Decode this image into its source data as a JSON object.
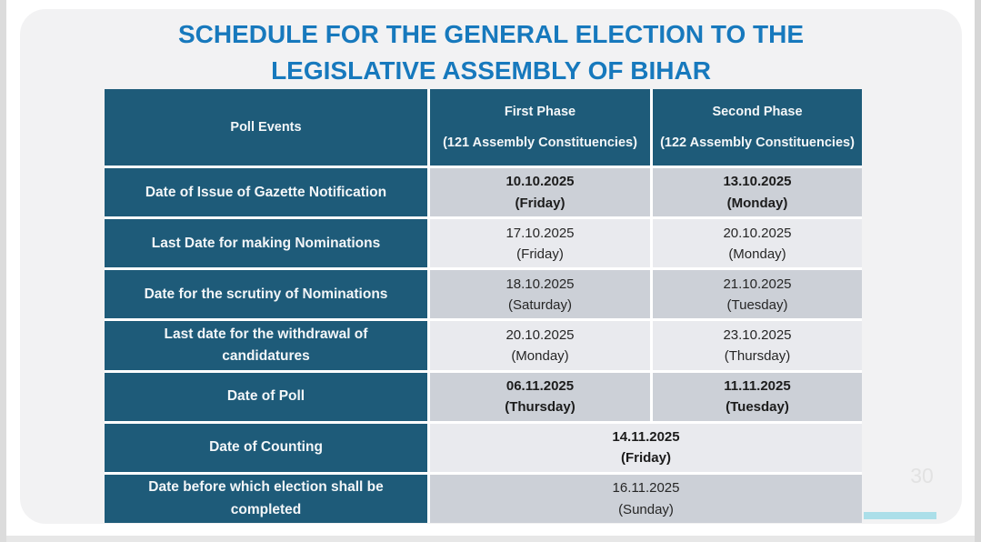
{
  "title": {
    "line1": "SCHEDULE FOR THE GENERAL ELECTION TO THE",
    "line2": "LEGISLATIVE ASSEMBLY OF BIHAR"
  },
  "colors": {
    "title_blue": "#1779bd",
    "header_teal": "#1e5b79",
    "row_shade_dark": "#ccd0d7",
    "row_shade_light": "#e9eaee",
    "accent_cyan": "#abdfe9"
  },
  "table": {
    "headers": [
      {
        "line1": "Poll Events",
        "line2": ""
      },
      {
        "line1": "First Phase",
        "line2": "(121 Assembly Constituencies)"
      },
      {
        "line1": "Second Phase",
        "line2": "(122 Assembly Constituencies)"
      }
    ],
    "rows": [
      {
        "event_line1": "Date of Issue of Gazette Notification",
        "event_line2": "",
        "first_date": "10.10.2025",
        "first_day": "(Friday)",
        "second_date": "13.10.2025",
        "second_day": "(Monday)",
        "bold": true,
        "merged": false
      },
      {
        "event_line1": "Last Date for making Nominations",
        "event_line2": "",
        "first_date": "17.10.2025",
        "first_day": "(Friday)",
        "second_date": "20.10.2025",
        "second_day": "(Monday)",
        "bold": false,
        "merged": false
      },
      {
        "event_line1": "Date for the scrutiny of Nominations",
        "event_line2": "",
        "first_date": "18.10.2025",
        "first_day": "(Saturday)",
        "second_date": "21.10.2025",
        "second_day": "(Tuesday)",
        "bold": false,
        "merged": false
      },
      {
        "event_line1": "Last date for the withdrawal of",
        "event_line2": "candidatures",
        "first_date": "20.10.2025",
        "first_day": "(Monday)",
        "second_date": "23.10.2025",
        "second_day": "(Thursday)",
        "bold": false,
        "merged": false
      },
      {
        "event_line1": "Date of Poll",
        "event_line2": "",
        "first_date": "06.11.2025",
        "first_day": "(Thursday)",
        "second_date": "11.11.2025",
        "second_day": "(Tuesday)",
        "bold": true,
        "merged": false
      },
      {
        "event_line1": "Date of Counting",
        "event_line2": "",
        "merged_date": "14.11.2025",
        "merged_day": "(Friday)",
        "bold": true,
        "merged": true
      },
      {
        "event_line1": "Date before which election shall be",
        "event_line2": "completed",
        "merged_date": "16.11.2025",
        "merged_day": "(Sunday)",
        "bold": false,
        "merged": true
      }
    ]
  },
  "page": {
    "number": "30"
  }
}
